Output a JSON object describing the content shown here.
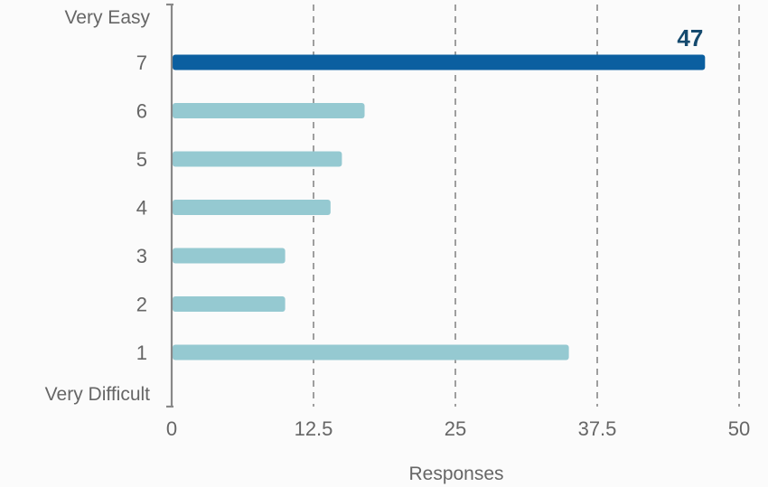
{
  "chart_data": {
    "type": "bar",
    "orientation": "horizontal",
    "categories": [
      "7",
      "6",
      "5",
      "4",
      "3",
      "2",
      "1"
    ],
    "values": [
      47,
      17,
      15,
      14,
      10,
      10,
      35
    ],
    "highlight_index": 0,
    "data_labels": [
      {
        "index": 0,
        "text": "47"
      }
    ],
    "axis_top_label": "Very Easy",
    "axis_bottom_label": "Very Difficult",
    "xlabel": "Responses",
    "ylabel": "",
    "xlim": [
      0,
      50
    ],
    "xticks": [
      {
        "value": 0,
        "label": "0"
      },
      {
        "value": 12.5,
        "label": "12.5"
      },
      {
        "value": 25,
        "label": "25"
      },
      {
        "value": 37.5,
        "label": "37.5"
      },
      {
        "value": 50,
        "label": "50"
      }
    ],
    "grid": "vertical dashed",
    "legend": "none",
    "colors": {
      "highlight": "#0b5fa0",
      "bar": "#95c9d1",
      "highlight_label": "#154a6e",
      "grid": "#888888",
      "axis": "#888888",
      "text": "#666666"
    }
  }
}
